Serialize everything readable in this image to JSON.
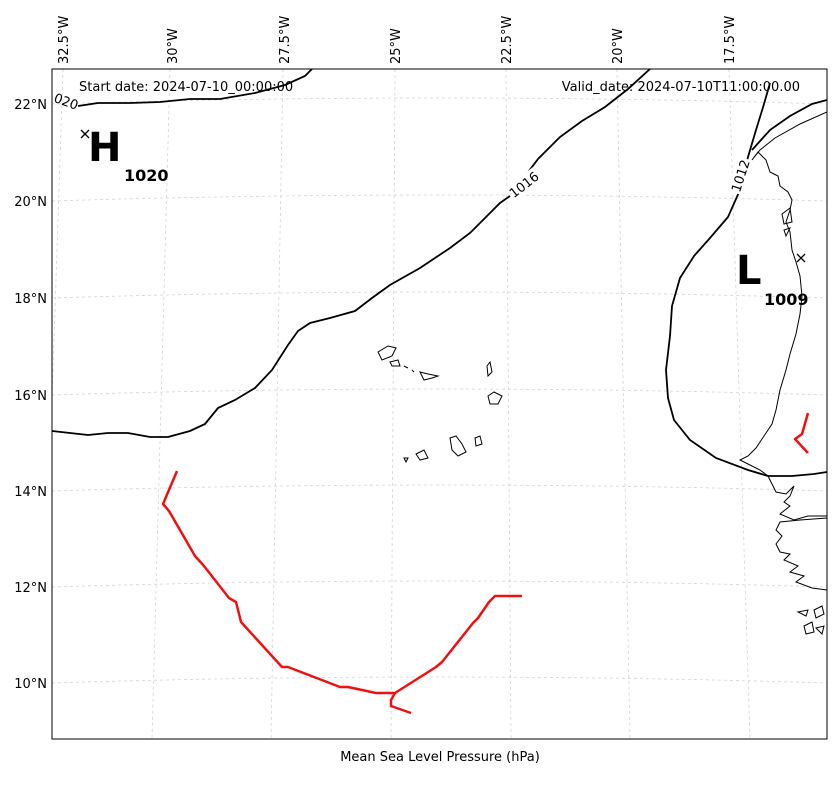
{
  "header": {
    "start_date": "Start date: 2024-07-10_00:00:00",
    "valid_date": "Valid_date: 2024-07-10T11:00:00.00"
  },
  "footer": {
    "xlabel": "Mean Sea Level Pressure (hPa)"
  },
  "axes": {
    "lon_ticks": [
      "32.5°W",
      "30°W",
      "27.5°W",
      "25°W",
      "22.5°W",
      "20°W",
      "17.5°W"
    ],
    "lat_ticks": [
      "22°N",
      "20°N",
      "18°N",
      "16°N",
      "14°N",
      "12°N",
      "10°N"
    ],
    "grid": true
  },
  "pressure_centers": [
    {
      "type": "H",
      "value": "1020"
    },
    {
      "type": "L",
      "value": "1009"
    }
  ],
  "isobars": [
    {
      "label": "1016"
    },
    {
      "label": "1012"
    },
    {
      "label": "020"
    }
  ],
  "colors": {
    "isobar": "#000000",
    "storm_track": "#ee1111",
    "grid": "#cccccc"
  }
}
